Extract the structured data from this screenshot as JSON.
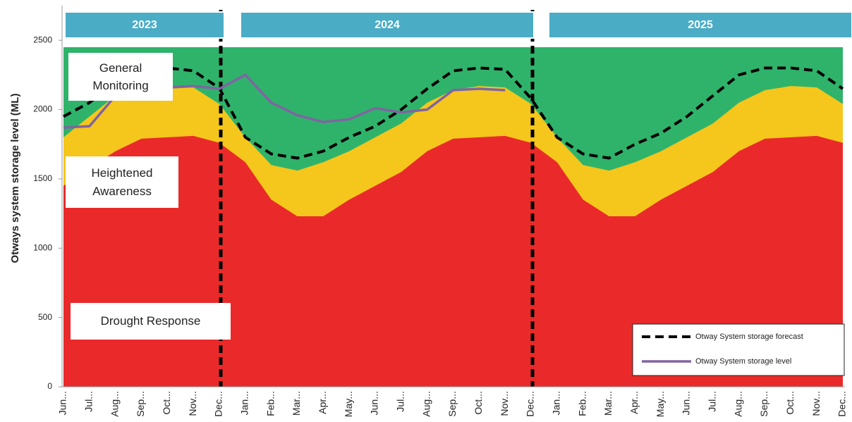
{
  "chart_data": {
    "type": "area",
    "y_label": "Otways system  storage level (ML)",
    "years": [
      "2023",
      "2024",
      "2025"
    ],
    "categories": [
      "Jun...",
      "Jul...",
      "Aug...",
      "Sep...",
      "Oct...",
      "Nov...",
      "Dec...",
      "Jan...",
      "Feb...",
      "Mar...",
      "Apr...",
      "May...",
      "Jun...",
      "Jul...",
      "Aug...",
      "Sep...",
      "Oct...",
      "Nov...",
      "Dec...",
      "Jan...",
      "Feb...",
      "Mar...",
      "Apr...",
      "May...",
      "Jun...",
      "Jul...",
      "Aug...",
      "Sep...",
      "Oct...",
      "Nov...",
      "Dec..."
    ],
    "ylim": [
      0,
      2750
    ],
    "yticks": [
      0,
      500,
      1000,
      1500,
      2000,
      2500
    ],
    "series": [
      {
        "name": "General Monitoring",
        "type": "area",
        "color": "#2fb36b",
        "values": [
          2450,
          2450,
          2450,
          2450,
          2450,
          2450,
          2450,
          2450,
          2450,
          2450,
          2450,
          2450,
          2450,
          2450,
          2450,
          2450,
          2450,
          2450,
          2450,
          2450,
          2450,
          2450,
          2450,
          2450,
          2450,
          2450,
          2450,
          2450,
          2450,
          2450,
          2450
        ]
      },
      {
        "name": "Heightened Awareness",
        "type": "area",
        "color": "#f5c61c",
        "values": [
          1800,
          1950,
          2100,
          2130,
          2150,
          2160,
          2040,
          1800,
          1600,
          1560,
          1620,
          1700,
          1800,
          1900,
          2050,
          2140,
          2170,
          2160,
          2040,
          1800,
          1600,
          1560,
          1620,
          1700,
          1800,
          1900,
          2050,
          2140,
          2170,
          2160,
          2040
        ]
      },
      {
        "name": "Drought Response",
        "type": "area",
        "color": "#ea2a2a",
        "values": [
          1450,
          1580,
          1700,
          1790,
          1800,
          1810,
          1760,
          1620,
          1350,
          1230,
          1230,
          1350,
          1450,
          1550,
          1700,
          1790,
          1800,
          1810,
          1760,
          1620,
          1350,
          1230,
          1230,
          1350,
          1450,
          1550,
          1700,
          1790,
          1800,
          1810,
          1760
        ]
      },
      {
        "name": "Otway System storage forecast",
        "type": "line",
        "dashed": true,
        "color": "#000000",
        "values": [
          1950,
          2050,
          2200,
          2290,
          2300,
          2280,
          2155,
          1800,
          1680,
          1650,
          1700,
          1800,
          1880,
          2000,
          2150,
          2280,
          2300,
          2290,
          2080,
          1800,
          1680,
          1650,
          1750,
          1830,
          1950,
          2100,
          2250,
          2300,
          2300,
          2280,
          2150
        ]
      },
      {
        "name": "Otway System storage level",
        "type": "line",
        "dashed": false,
        "color": "#8064a2",
        "values": [
          1870,
          1880,
          2100,
          2150,
          2160,
          2170,
          2150,
          2250,
          2050,
          1960,
          1910,
          1930,
          2010,
          1980,
          2000,
          2140,
          2150,
          2140,
          null,
          null,
          null,
          null,
          null,
          null,
          null,
          null,
          null,
          null,
          null,
          null,
          null
        ]
      }
    ]
  }
}
